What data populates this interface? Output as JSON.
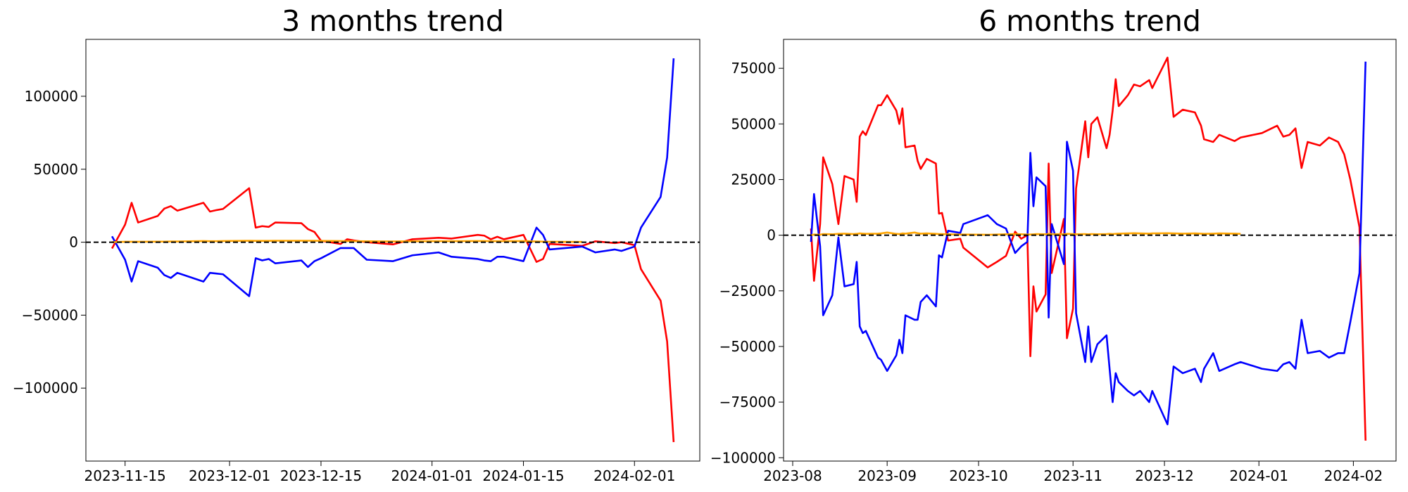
{
  "chart_data": [
    {
      "type": "line",
      "title": "3 months trend",
      "x": [
        "2023-11-13",
        "2023-11-15",
        "2023-11-16",
        "2023-11-17",
        "2023-11-20",
        "2023-11-21",
        "2023-11-22",
        "2023-11-23",
        "2023-11-27",
        "2023-11-28",
        "2023-11-29",
        "2023-11-30",
        "2023-12-04",
        "2023-12-05",
        "2023-12-06",
        "2023-12-07",
        "2023-12-08",
        "2023-12-12",
        "2023-12-13",
        "2023-12-14",
        "2023-12-15",
        "2023-12-18",
        "2023-12-19",
        "2023-12-20",
        "2023-12-22",
        "2023-12-26",
        "2023-12-29",
        "2024-01-02",
        "2024-01-04",
        "2024-01-08",
        "2024-01-09",
        "2024-01-10",
        "2024-01-11",
        "2024-01-12",
        "2024-01-15",
        "2024-01-17",
        "2024-01-18",
        "2024-01-19",
        "2024-01-24",
        "2024-01-26",
        "2024-01-29",
        "2024-01-30",
        "2024-02-01",
        "2024-02-02",
        "2024-02-05",
        "2024-02-06",
        "2024-02-07"
      ],
      "series": [
        {
          "color": "#ff0000",
          "values": [
            -4300,
            12000,
            27000,
            13500,
            18000,
            23000,
            24700,
            21600,
            27000,
            21000,
            22000,
            22800,
            37000,
            10000,
            11000,
            10500,
            13500,
            13000,
            9000,
            7000,
            1000,
            -1200,
            2000,
            1200,
            0,
            -1500,
            2000,
            3000,
            2500,
            5000,
            4500,
            2000,
            3700,
            2000,
            5000,
            -13500,
            -11500,
            -1200,
            -2500,
            600,
            -600,
            0,
            -2000,
            -18500,
            -40000,
            -68000,
            -137000
          ]
        },
        {
          "color": "#0000ff",
          "values": [
            4000,
            -12000,
            -27000,
            -13000,
            -17500,
            -22500,
            -24500,
            -21000,
            -27000,
            -21000,
            -21500,
            -22000,
            -37000,
            -11000,
            -12500,
            -11500,
            -14500,
            -12500,
            -17000,
            -13000,
            -11000,
            -4000,
            -4000,
            -4000,
            -12000,
            -13000,
            -9000,
            -7000,
            -10000,
            -11500,
            -12500,
            -13000,
            -10000,
            -10000,
            -13000,
            10000,
            5000,
            -5000,
            -3000,
            -7000,
            -5000,
            -6000,
            -3000,
            10000,
            31000,
            58000,
            126000
          ]
        },
        {
          "color": "#ffa500",
          "values": [
            0,
            300,
            300,
            300,
            400,
            400,
            500,
            500,
            800,
            700,
            700,
            800,
            1000,
            900,
            900,
            900,
            1000,
            1000,
            1000,
            1000,
            900,
            800,
            700,
            700,
            600,
            500,
            600,
            700,
            700,
            800,
            800,
            700,
            700,
            700,
            800,
            500,
            400,
            300,
            200,
            null,
            null,
            null,
            null,
            null,
            null,
            null,
            null
          ]
        }
      ],
      "hline": {
        "y": 0,
        "color": "#000000",
        "style": "dashed"
      },
      "xlim": [
        "2023-11-09",
        "2024-02-11"
      ],
      "xticks": [
        "2023-11-15",
        "2023-12-01",
        "2023-12-15",
        "2024-01-01",
        "2024-01-15",
        "2024-02-01"
      ],
      "ylim": [
        -150000,
        139000
      ],
      "yticks": [
        {
          "value": -100000,
          "label": "−100000"
        },
        {
          "value": -50000,
          "label": "−50000"
        },
        0,
        50000,
        100000
      ]
    },
    {
      "type": "line",
      "title": "6 months trend",
      "x": [
        "2023-08-07",
        "2023-08-08",
        "2023-08-10",
        "2023-08-11",
        "2023-08-14",
        "2023-08-16",
        "2023-08-18",
        "2023-08-21",
        "2023-08-22",
        "2023-08-23",
        "2023-08-24",
        "2023-08-25",
        "2023-08-29",
        "2023-08-30",
        "2023-09-01",
        "2023-09-04",
        "2023-09-05",
        "2023-09-06",
        "2023-09-07",
        "2023-09-10",
        "2023-09-11",
        "2023-09-12",
        "2023-09-14",
        "2023-09-17",
        "2023-09-18",
        "2023-09-19",
        "2023-09-21",
        "2023-09-25",
        "2023-09-26",
        "2023-10-04",
        "2023-10-07",
        "2023-10-10",
        "2023-10-13",
        "2023-10-15",
        "2023-10-17",
        "2023-10-18",
        "2023-10-19",
        "2023-10-20",
        "2023-10-23",
        "2023-10-24",
        "2023-10-25",
        "2023-10-29",
        "2023-10-30",
        "2023-11-01",
        "2023-11-02",
        "2023-11-05",
        "2023-11-06",
        "2023-11-07",
        "2023-11-09",
        "2023-11-12",
        "2023-11-13",
        "2023-11-14",
        "2023-11-15",
        "2023-11-16",
        "2023-11-19",
        "2023-11-21",
        "2023-11-23",
        "2023-11-26",
        "2023-11-27",
        "2023-12-02",
        "2023-12-04",
        "2023-12-07",
        "2023-12-11",
        "2023-12-13",
        "2023-12-14",
        "2023-12-17",
        "2023-12-19",
        "2023-12-24",
        "2023-12-26",
        "2024-01-02",
        "2024-01-07",
        "2024-01-09",
        "2024-01-11",
        "2024-01-13",
        "2024-01-15",
        "2024-01-17",
        "2024-01-21",
        "2024-01-24",
        "2024-01-27",
        "2024-01-29",
        "2024-01-31",
        "2024-02-03",
        "2024-02-05"
      ],
      "series": [
        {
          "color": "#ff0000",
          "values": [
            3000,
            -20500,
            5000,
            35000,
            23000,
            5000,
            26600,
            25000,
            15000,
            44300,
            46700,
            45000,
            58400,
            58400,
            62900,
            56000,
            50000,
            57000,
            39500,
            40300,
            33400,
            29800,
            34300,
            32200,
            9700,
            10000,
            -2400,
            -1600,
            -5600,
            -14500,
            -12000,
            -9300,
            1600,
            -1600,
            0,
            -54400,
            -23000,
            -34300,
            -26600,
            32200,
            -17000,
            7300,
            -46300,
            -33000,
            21000,
            51200,
            35000,
            50000,
            53000,
            39100,
            45100,
            56000,
            70100,
            58000,
            62900,
            67700,
            66900,
            69700,
            66100,
            79800,
            53200,
            56400,
            55200,
            49200,
            43100,
            41900,
            45100,
            42300,
            43900,
            45900,
            49200,
            44300,
            45100,
            48000,
            30200,
            41900,
            40300,
            43900,
            41900,
            36300,
            25000,
            3600,
            -92300
          ]
        },
        {
          "color": "#0000ff",
          "values": [
            -3000,
            18500,
            -5000,
            -36000,
            -27000,
            -1000,
            -23000,
            -22000,
            -12000,
            -41000,
            -44000,
            -43000,
            -55000,
            -56000,
            -61000,
            -54000,
            -47000,
            -53000,
            -36000,
            -38000,
            -38000,
            -30000,
            -27000,
            -32000,
            -9000,
            -10000,
            2000,
            1000,
            5000,
            9000,
            5000,
            3000,
            -8000,
            -5000,
            -3000,
            37000,
            13000,
            26000,
            22000,
            -37000,
            5000,
            -13000,
            42000,
            29000,
            -35000,
            -57000,
            -41000,
            -57000,
            -49000,
            -45000,
            -60000,
            -75000,
            -62000,
            -66000,
            -70000,
            -72000,
            -70000,
            -75000,
            -70000,
            -85000,
            -59000,
            -62000,
            -60000,
            -66000,
            -60000,
            -53000,
            -61000,
            -58000,
            -57000,
            -60000,
            -61000,
            -58000,
            -57000,
            -60000,
            -38000,
            -53000,
            -52000,
            -55000,
            -53000,
            -53000,
            -39000,
            -17000,
            78000
          ]
        },
        {
          "color": "#ffa500",
          "values": [
            0,
            300,
            200,
            500,
            400,
            600,
            700,
            500,
            600,
            800,
            700,
            600,
            700,
            800,
            1200,
            600,
            500,
            800,
            700,
            1200,
            900,
            700,
            800,
            600,
            500,
            500,
            400,
            300,
            300,
            200,
            300,
            400,
            500,
            400,
            300,
            300,
            400,
            500,
            400,
            600,
            500,
            400,
            600,
            500,
            400,
            500,
            400,
            500,
            400,
            500,
            600,
            500,
            600,
            700,
            800,
            900,
            800,
            700,
            800,
            900,
            800,
            700,
            800,
            700,
            600,
            700,
            800,
            700,
            600,
            null,
            null,
            null,
            null,
            null,
            null,
            null,
            null,
            null,
            null,
            null,
            null,
            null,
            null
          ]
        }
      ],
      "hline": {
        "y": 0,
        "color": "#000000",
        "style": "dashed"
      },
      "xlim": [
        "2023-07-29",
        "2024-02-15"
      ],
      "xticks": [
        "2023-08",
        "2023-09",
        "2023-10",
        "2023-11",
        "2023-12",
        "2024-01",
        "2024-02"
      ],
      "ylim": [
        -101500,
        88000
      ],
      "yticks": [
        {
          "value": -100000,
          "label": "−100000"
        },
        {
          "value": -75000,
          "label": "−75000"
        },
        {
          "value": -50000,
          "label": "−50000"
        },
        {
          "value": -25000,
          "label": "−25000"
        },
        0,
        25000,
        50000,
        75000
      ]
    }
  ]
}
